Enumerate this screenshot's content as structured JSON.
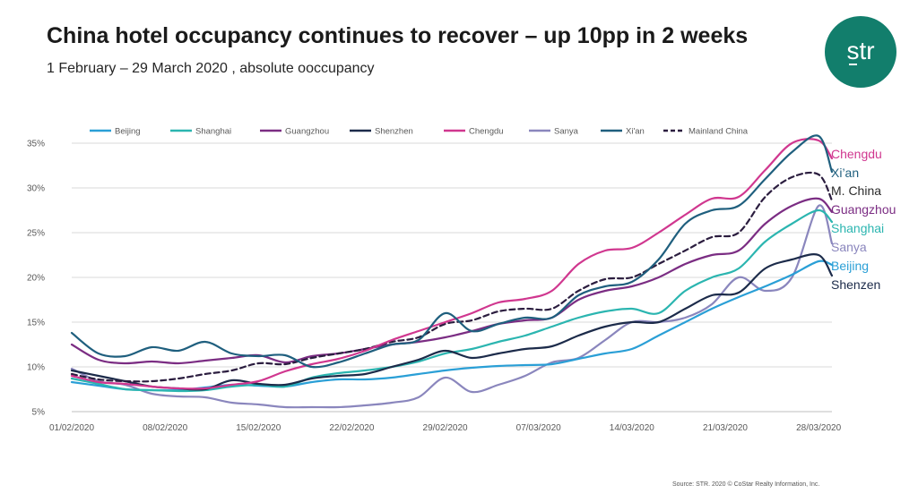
{
  "title": "China hotel occupancy continues to recover – up 10pp in 2 weeks",
  "subtitle": "1 February – 29 March 2020 , absolute ooccupancy",
  "logo_text": "str",
  "source": "Source: STR. 2020 © CoStar Realty Information, Inc.",
  "colors": {
    "Beijing": "#2a9fd6",
    "Shanghai": "#2bb5b0",
    "Guangzhou": "#7b2d83",
    "Shenzhen": "#1c2b4a",
    "Chengdu": "#d0378f",
    "Sanya": "#8a86bd",
    "Xi'an": "#1f5f7e",
    "Mainland China": "#2b1d3f",
    "logo_bg": "#127e6c"
  },
  "chart_data": {
    "type": "line",
    "xlabel": "",
    "ylabel": "",
    "ylim": [
      5,
      35
    ],
    "yticks": [
      "5%",
      "10%",
      "15%",
      "20%",
      "25%",
      "30%",
      "35%"
    ],
    "xticks": [
      "01/02/2020",
      "08/02/2020",
      "15/02/2020",
      "22/02/2020",
      "29/02/2020",
      "07/03/2020",
      "14/03/2020",
      "21/03/2020",
      "28/03/2020"
    ],
    "x": [
      "01/02/2020",
      "03/02/2020",
      "05/02/2020",
      "07/02/2020",
      "09/02/2020",
      "11/02/2020",
      "13/02/2020",
      "15/02/2020",
      "17/02/2020",
      "19/02/2020",
      "21/02/2020",
      "23/02/2020",
      "25/02/2020",
      "27/02/2020",
      "29/02/2020",
      "02/03/2020",
      "04/03/2020",
      "06/03/2020",
      "08/03/2020",
      "10/03/2020",
      "12/03/2020",
      "14/03/2020",
      "16/03/2020",
      "18/03/2020",
      "20/03/2020",
      "22/03/2020",
      "24/03/2020",
      "26/03/2020",
      "28/03/2020",
      "29/03/2020"
    ],
    "legend_position": "top",
    "grid": true,
    "series": [
      {
        "name": "Beijing",
        "values": [
          8.3,
          7.9,
          7.5,
          7.4,
          7.4,
          7.7,
          8.0,
          7.9,
          7.8,
          8.3,
          8.6,
          8.6,
          8.8,
          9.2,
          9.6,
          9.9,
          10.1,
          10.2,
          10.3,
          10.9,
          11.5,
          12.0,
          13.5,
          15.0,
          16.5,
          17.8,
          19.0,
          20.3,
          21.8,
          21.4
        ]
      },
      {
        "name": "Shanghai",
        "values": [
          8.7,
          8.1,
          7.5,
          7.4,
          7.3,
          7.4,
          7.8,
          8.0,
          7.8,
          8.8,
          9.3,
          9.6,
          10.0,
          10.6,
          11.5,
          12.0,
          12.8,
          13.5,
          14.5,
          15.5,
          16.2,
          16.5,
          16.0,
          18.5,
          20.0,
          21.0,
          24.0,
          26.0,
          27.5,
          26.2
        ]
      },
      {
        "name": "Guangzhou",
        "values": [
          12.5,
          10.8,
          10.4,
          10.6,
          10.4,
          10.7,
          11.0,
          11.3,
          10.5,
          11.2,
          11.5,
          12.0,
          12.5,
          12.8,
          13.3,
          14.0,
          14.8,
          15.2,
          15.5,
          17.5,
          18.5,
          19.0,
          20.0,
          21.5,
          22.5,
          23.0,
          26.0,
          28.0,
          28.8,
          27.3
        ]
      },
      {
        "name": "Shenzhen",
        "values": [
          9.6,
          9.0,
          8.4,
          7.8,
          7.6,
          7.5,
          8.5,
          8.1,
          8.0,
          8.7,
          9.0,
          9.2,
          10.0,
          10.8,
          11.8,
          11.0,
          11.5,
          12.0,
          12.3,
          13.5,
          14.5,
          15.0,
          15.0,
          16.5,
          18.0,
          18.3,
          21.0,
          22.0,
          22.5,
          20.2
        ]
      },
      {
        "name": "Chengdu",
        "values": [
          9.0,
          8.3,
          8.1,
          7.8,
          7.6,
          7.6,
          8.0,
          8.4,
          9.5,
          10.3,
          10.9,
          11.8,
          13.0,
          14.0,
          15.0,
          16.0,
          17.2,
          17.6,
          18.5,
          21.5,
          23.0,
          23.3,
          25.0,
          27.0,
          28.8,
          29.0,
          32.0,
          35.0,
          35.3,
          33.3
        ]
      },
      {
        "name": "Sanya",
        "values": [
          9.8,
          8.4,
          8.0,
          7.0,
          6.7,
          6.6,
          6.0,
          5.8,
          5.5,
          5.5,
          5.5,
          5.7,
          6.0,
          6.6,
          8.8,
          7.2,
          8.0,
          9.0,
          10.5,
          11.0,
          13.0,
          15.0,
          15.0,
          15.5,
          17.0,
          20.0,
          18.5,
          20.0,
          28.0,
          23.8
        ]
      },
      {
        "name": "Xi'an",
        "values": [
          13.8,
          11.5,
          11.2,
          12.2,
          11.8,
          12.8,
          11.5,
          11.2,
          11.3,
          10.0,
          10.5,
          11.5,
          12.5,
          13.0,
          16.0,
          14.0,
          14.8,
          15.5,
          15.5,
          18.0,
          19.0,
          19.5,
          22.0,
          26.0,
          27.5,
          28.0,
          31.0,
          34.0,
          35.8,
          31.8
        ]
      },
      {
        "name": "Mainland China",
        "values": [
          9.2,
          8.6,
          8.4,
          8.4,
          8.7,
          9.2,
          9.6,
          10.4,
          10.3,
          11.0,
          11.5,
          12.0,
          12.8,
          13.3,
          14.8,
          15.2,
          16.2,
          16.5,
          16.5,
          18.5,
          19.8,
          20.0,
          21.5,
          23.0,
          24.5,
          25.0,
          29.0,
          31.2,
          31.5,
          28.6
        ]
      }
    ]
  },
  "end_labels": [
    {
      "text": "Chengdu",
      "color": "#d0378f"
    },
    {
      "text": "Xi’an",
      "color": "#1f5f7e"
    },
    {
      "text": "M. China",
      "color": "#2b2b2b"
    },
    {
      "text": "Guangzhou",
      "color": "#7b2d83"
    },
    {
      "text": "Shanghai",
      "color": "#2bb5b0"
    },
    {
      "text": "Sanya",
      "color": "#8a86bd"
    },
    {
      "text": "Beijing",
      "color": "#2a9fd6"
    },
    {
      "text": "Shenzen",
      "color": "#1c2b4a"
    }
  ]
}
